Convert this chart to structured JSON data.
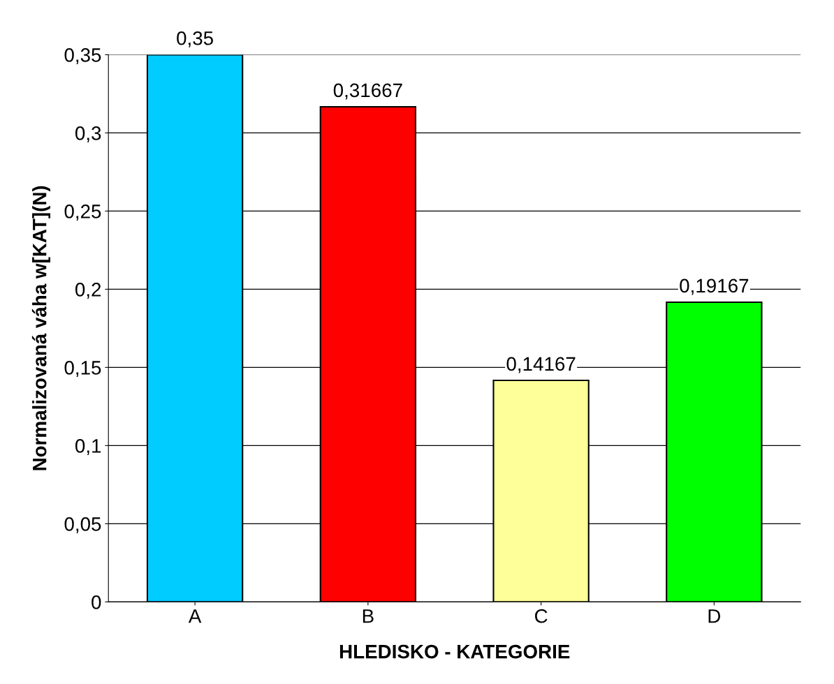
{
  "chart_data": {
    "type": "bar",
    "xlabel": "HLEDISKO - KATEGORIE",
    "ylabel": "Normalizovaná váha w[KAT](N)",
    "categories": [
      "A",
      "B",
      "C",
      "D"
    ],
    "values": [
      0.35,
      0.31667,
      0.14167,
      0.19167
    ],
    "colors": [
      "#00ccff",
      "#ff0000",
      "#ffff99",
      "#00ff00"
    ],
    "value_labels": [
      "0,35",
      "0,31667",
      "0,14167",
      "0,19167"
    ],
    "ylim": [
      0,
      0.35
    ],
    "yticks": [
      {
        "value": 0,
        "label": "0"
      },
      {
        "value": 0.05,
        "label": "0,05"
      },
      {
        "value": 0.1,
        "label": "0,1"
      },
      {
        "value": 0.15,
        "label": "0,15"
      },
      {
        "value": 0.2,
        "label": "0,2"
      },
      {
        "value": 0.25,
        "label": "0,25"
      },
      {
        "value": 0.3,
        "label": "0,3"
      },
      {
        "value": 0.35,
        "label": "0,35"
      }
    ],
    "grid": "y"
  }
}
